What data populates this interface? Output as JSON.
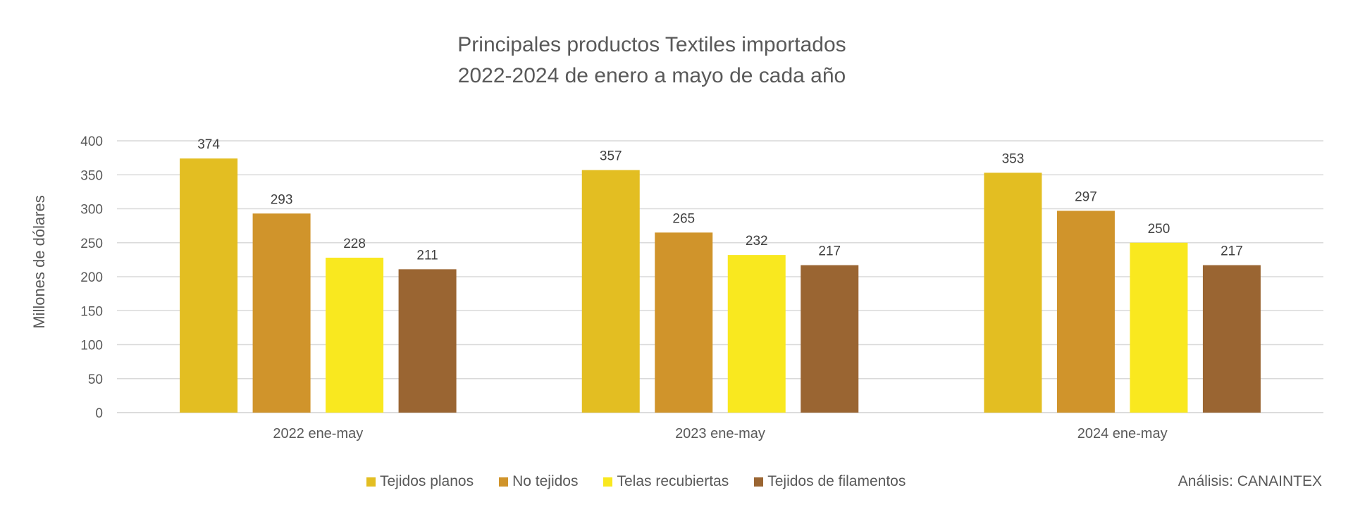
{
  "chart_data": {
    "type": "bar",
    "title_line1": "Principales productos Textiles importados",
    "title_line2": "2022-2024 de enero a mayo de cada año",
    "ylabel": "Millones de dólares",
    "ylim": [
      0,
      400
    ],
    "yticks": [
      0,
      50,
      100,
      150,
      200,
      250,
      300,
      350,
      400
    ],
    "grid": true,
    "legend_position": "bottom",
    "categories": [
      "2022 ene-may",
      "2023 ene-may",
      "2024 ene-may"
    ],
    "series": [
      {
        "name": "Tejidos planos",
        "color": "#E3BE22",
        "values": [
          374,
          357,
          353
        ]
      },
      {
        "name": "No tejidos",
        "color": "#D0942B",
        "values": [
          293,
          265,
          297
        ]
      },
      {
        "name": "Telas recubiertas",
        "color": "#F9E81F",
        "values": [
          228,
          232,
          250
        ]
      },
      {
        "name": "Tejidos de filamentos",
        "color": "#9A6532",
        "values": [
          211,
          217,
          217
        ]
      }
    ],
    "source": "Análisis: CANAINTEX"
  }
}
